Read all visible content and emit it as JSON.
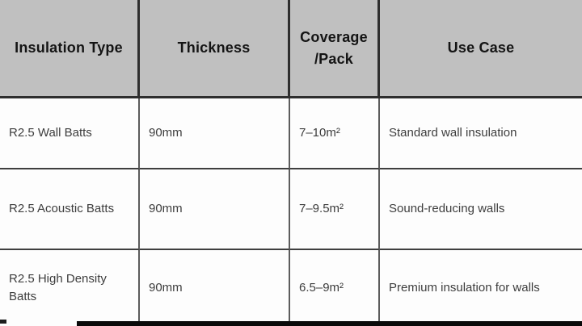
{
  "table": {
    "headers": {
      "insulation_type": "Insulation Type",
      "thickness": "Thickness",
      "coverage": "Coverage /Pack",
      "use_case": "Use Case"
    },
    "rows": [
      {
        "insulation_type": "R2.5 Wall Batts",
        "thickness": "90mm",
        "coverage": "7–10m²",
        "use_case": "Standard wall insulation"
      },
      {
        "insulation_type": "R2.5 Acoustic Batts",
        "thickness": "90mm",
        "coverage": "7–9.5m²",
        "use_case": "Sound-reducing walls"
      },
      {
        "insulation_type": "R2.5 High Density Batts",
        "thickness": "90mm",
        "coverage": "6.5–9m²",
        "use_case": "Premium insulation for walls"
      }
    ]
  },
  "chart_data": {
    "type": "table",
    "title": "",
    "columns": [
      "Insulation Type",
      "Thickness",
      "Coverage /Pack",
      "Use Case"
    ],
    "rows": [
      [
        "R2.5 Wall Batts",
        "90mm",
        "7–10m²",
        "Standard wall insulation"
      ],
      [
        "R2.5 Acoustic Batts",
        "90mm",
        "7–9.5m²",
        "Sound-reducing walls"
      ],
      [
        "R2.5 High Density Batts",
        "90mm",
        "6.5–9m²",
        "Premium insulation for walls"
      ]
    ]
  },
  "colors": {
    "header_bg": "#c0c0c0",
    "header_text": "#141414",
    "body_text": "#3d3d3d",
    "grid_line_dark": "#2e2e2e",
    "grid_line_body": "#5c5c5c",
    "bottom_bar": "#0a0a0a"
  }
}
